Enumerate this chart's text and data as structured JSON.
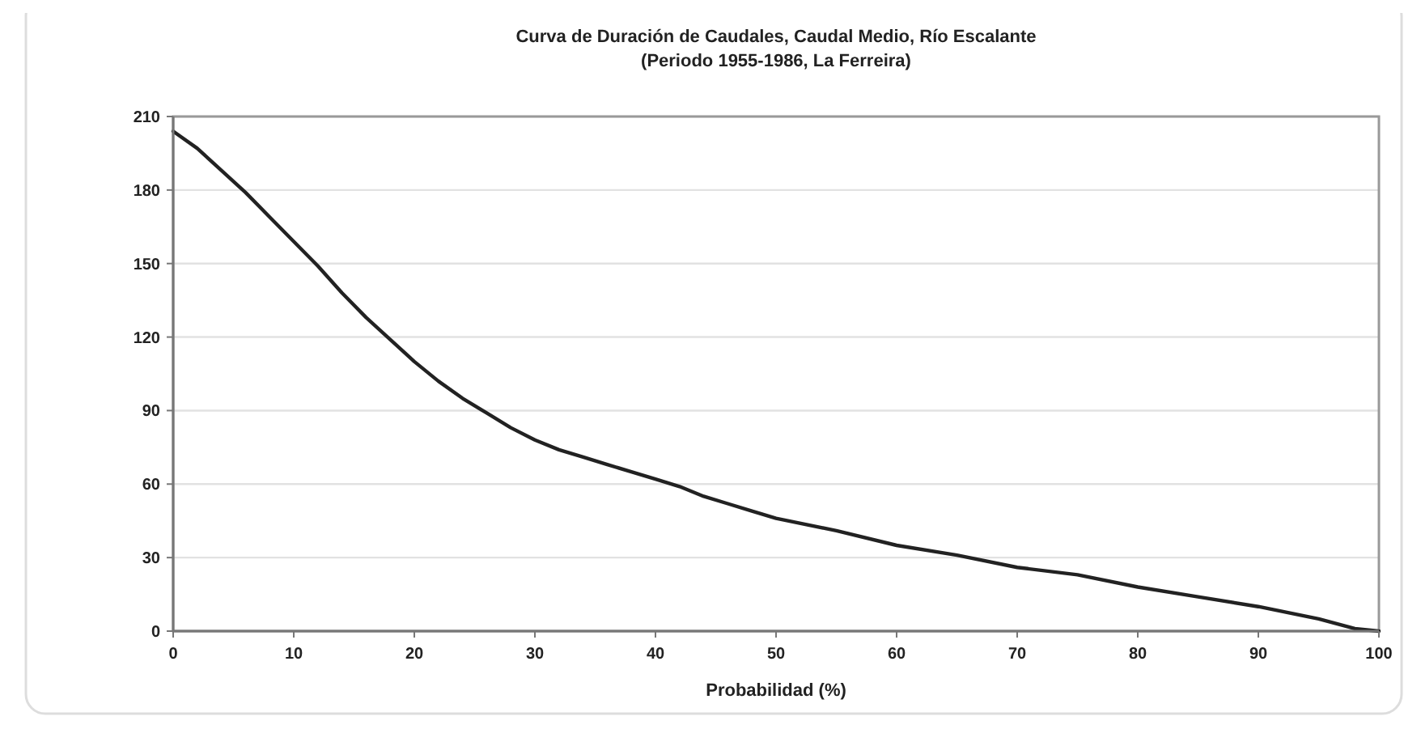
{
  "chart_data": {
    "type": "line",
    "title": "Curva de Duración de Caudales, Caudal Medio, Río Escalante",
    "subtitle": "(Periodo 1955-1986, La Ferreira)",
    "xlabel": "Probabilidad (%)",
    "x": [
      0,
      2,
      4,
      6,
      8,
      10,
      12,
      14,
      16,
      18,
      20,
      22,
      24,
      26,
      28,
      30,
      32,
      34,
      36,
      38,
      40,
      42,
      44,
      46,
      48,
      50,
      55,
      60,
      65,
      70,
      75,
      80,
      85,
      90,
      95,
      98,
      100
    ],
    "series": [
      {
        "color": "#222222",
        "values": [
          204,
          197,
          188,
          179,
          169,
          159,
          149,
          138,
          128,
          119,
          110,
          102,
          95,
          89,
          83,
          78,
          74,
          71,
          68,
          65,
          62,
          59,
          55,
          52,
          49,
          46,
          41,
          35,
          31,
          26,
          23,
          18,
          14,
          10,
          5,
          1,
          0
        ]
      }
    ],
    "xlim": [
      0,
      100
    ],
    "xticks": [
      0,
      10,
      20,
      30,
      40,
      50,
      60,
      70,
      80,
      90,
      100
    ],
    "ylim": [
      0,
      210
    ],
    "yticks": [
      0,
      30,
      60,
      90,
      120,
      150,
      180,
      {
        "value": 210,
        "label": "210"
      }
    ],
    "grid": "y",
    "marker": "none",
    "line_style": "solid"
  }
}
